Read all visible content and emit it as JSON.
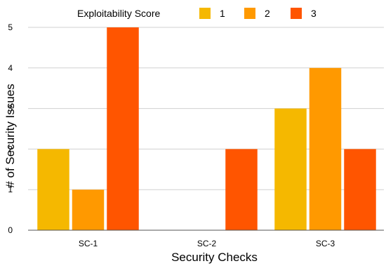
{
  "chart_data": {
    "type": "bar",
    "categories": [
      "SC-1",
      "SC-2",
      "SC-3"
    ],
    "series": [
      {
        "name": "1",
        "values": [
          2,
          0,
          3
        ],
        "color": "#F5B800"
      },
      {
        "name": "2",
        "values": [
          1,
          0,
          4
        ],
        "color": "#FF9900"
      },
      {
        "name": "3",
        "values": [
          5,
          2,
          2
        ],
        "color": "#FF5500"
      }
    ],
    "legend_title": "Exploitability Score",
    "legend_position": "top",
    "xlabel": "Security Checks",
    "ylabel": "# of Security Issues",
    "ylim": [
      0,
      5
    ],
    "yticks": [
      0,
      1,
      2,
      3,
      4,
      5
    ],
    "grid": true,
    "grid_color": "#d0d0d0",
    "axis_color": "#555555"
  }
}
